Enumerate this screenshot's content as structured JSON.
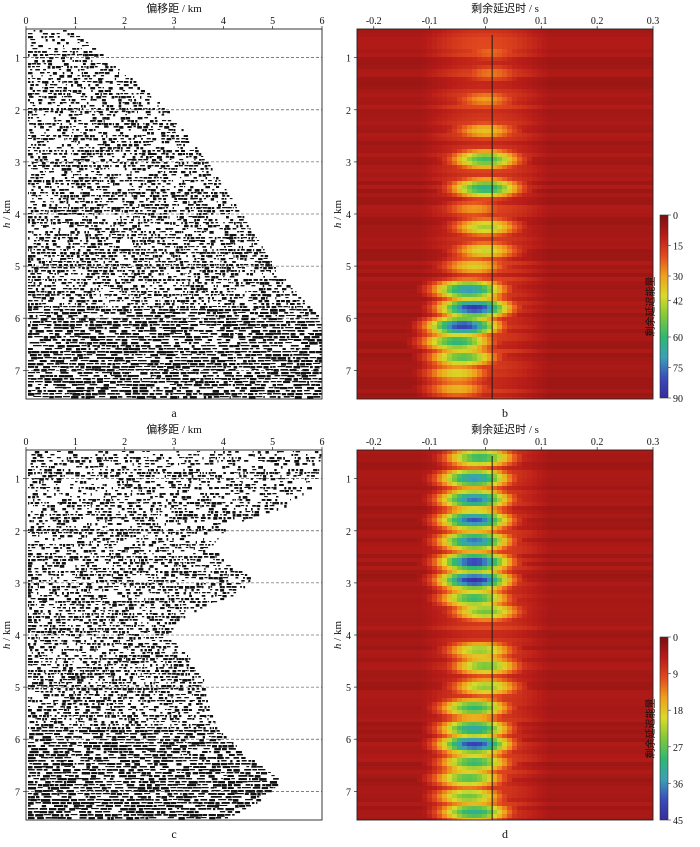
{
  "chart_data": [
    {
      "panel_letter": "a",
      "type": "heatmap",
      "style": "seismic-gather",
      "xlabel": "偏移距 / km",
      "ylabel_italic": "h",
      "ylabel_unit": " / km",
      "x_ticks": [
        0,
        1,
        2,
        3,
        4,
        5,
        6
      ],
      "y_ticks": [
        1,
        2,
        3,
        4,
        5,
        6,
        7
      ],
      "xlim": [
        0,
        6
      ],
      "ylim": [
        0.45,
        7.55
      ],
      "dashed_depths": [
        1,
        2,
        3,
        4,
        5,
        6,
        7
      ],
      "coverage_edge": [
        [
          0.45,
          0.9
        ],
        [
          1.0,
          1.7
        ],
        [
          2.0,
          2.9
        ],
        [
          3.0,
          3.7
        ],
        [
          4.0,
          4.4
        ],
        [
          5.0,
          5.05
        ],
        [
          5.5,
          5.5
        ],
        [
          6.0,
          6.0
        ],
        [
          7.55,
          6.0
        ]
      ]
    },
    {
      "panel_letter": "b",
      "type": "heatmap",
      "style": "energy",
      "xlabel": "剩余延迟时 / s",
      "ylabel_italic": "h",
      "ylabel_unit": " / km",
      "x_ticks": [
        -0.2,
        -0.1,
        0,
        0.1,
        0.2,
        0.3
      ],
      "y_ticks": [
        1,
        2,
        3,
        4,
        5,
        6,
        7
      ],
      "xlim": [
        -0.23,
        0.3
      ],
      "ylim": [
        0.45,
        7.55
      ],
      "colorbar_label": "剩余延迟能量",
      "colorbar_ticks": [
        0,
        15,
        30,
        42,
        60,
        75,
        90
      ],
      "colorbar_range": [
        0,
        90
      ],
      "colors": [
        "#7a1010",
        "#b81c18",
        "#e2491e",
        "#f0a01c",
        "#d9da2a",
        "#7ec83a",
        "#2fb872",
        "#3aa0b8",
        "#3a4cbc",
        "#362c9c"
      ],
      "energy_peaks": [
        {
          "depth": 0.9,
          "delay": 0.01,
          "energy": 24
        },
        {
          "depth": 1.3,
          "delay": 0.01,
          "energy": 26
        },
        {
          "depth": 1.8,
          "delay": 0.0,
          "energy": 30
        },
        {
          "depth": 2.4,
          "delay": 0.0,
          "energy": 36
        },
        {
          "depth": 2.95,
          "delay": 0.0,
          "energy": 58
        },
        {
          "depth": 3.5,
          "delay": 0.0,
          "energy": 64
        },
        {
          "depth": 3.9,
          "delay": -0.02,
          "energy": 30
        },
        {
          "depth": 4.25,
          "delay": 0.0,
          "energy": 46
        },
        {
          "depth": 4.7,
          "delay": 0.0,
          "energy": 42
        },
        {
          "depth": 5.0,
          "delay": -0.02,
          "energy": 38
        },
        {
          "depth": 5.45,
          "delay": -0.03,
          "energy": 72
        },
        {
          "depth": 5.8,
          "delay": -0.02,
          "energy": 86
        },
        {
          "depth": 6.15,
          "delay": -0.04,
          "energy": 84
        },
        {
          "depth": 6.45,
          "delay": -0.05,
          "energy": 62
        },
        {
          "depth": 6.75,
          "delay": -0.04,
          "energy": 56
        },
        {
          "depth": 7.05,
          "delay": -0.05,
          "energy": 40
        },
        {
          "depth": 7.35,
          "delay": -0.05,
          "energy": 34
        }
      ]
    },
    {
      "panel_letter": "c",
      "type": "heatmap",
      "style": "seismic-gather",
      "xlabel": "偏移距 / km",
      "ylabel_italic": "h",
      "ylabel_unit": " / km",
      "x_ticks": [
        0,
        1,
        2,
        3,
        4,
        5,
        6
      ],
      "y_ticks": [
        1,
        2,
        3,
        4,
        5,
        6,
        7
      ],
      "xlim": [
        0,
        6
      ],
      "ylim": [
        0.45,
        7.55
      ],
      "dashed_depths": [
        1,
        2,
        3,
        4,
        5,
        6,
        7
      ],
      "coverage_edge": [
        [
          0.45,
          6.0
        ],
        [
          1.1,
          5.9
        ],
        [
          1.5,
          5.3
        ],
        [
          1.9,
          4.1
        ],
        [
          2.3,
          3.8
        ],
        [
          2.6,
          4.1
        ],
        [
          2.9,
          4.6
        ],
        [
          3.2,
          4.3
        ],
        [
          3.45,
          3.6
        ],
        [
          3.7,
          3.1
        ],
        [
          4.0,
          2.9
        ],
        [
          4.4,
          3.3
        ],
        [
          4.8,
          3.6
        ],
        [
          5.3,
          3.7
        ],
        [
          5.8,
          3.9
        ],
        [
          6.3,
          4.5
        ],
        [
          6.8,
          5.2
        ],
        [
          7.2,
          4.7
        ],
        [
          7.55,
          4.0
        ]
      ]
    },
    {
      "panel_letter": "d",
      "type": "heatmap",
      "style": "energy",
      "xlabel": "剩余延迟时 / s",
      "ylabel_italic": "h",
      "ylabel_unit": " / km",
      "x_ticks": [
        -0.2,
        -0.1,
        0,
        0.1,
        0.2,
        0.3
      ],
      "y_ticks": [
        1,
        2,
        3,
        4,
        5,
        6,
        7
      ],
      "xlim": [
        -0.23,
        0.3
      ],
      "ylim": [
        0.45,
        7.55
      ],
      "colorbar_label": "剩余延迟能量",
      "colorbar_ticks": [
        0,
        9,
        18,
        27,
        36,
        45
      ],
      "colorbar_range": [
        0,
        45
      ],
      "colors": [
        "#7a1010",
        "#b81c18",
        "#e2491e",
        "#f0a01c",
        "#d9da2a",
        "#7ec83a",
        "#2fb872",
        "#3aa0b8",
        "#3a4cbc",
        "#362c9c"
      ],
      "energy_peaks": [
        {
          "depth": 0.6,
          "delay": -0.01,
          "energy": 30
        },
        {
          "depth": 1.0,
          "delay": -0.02,
          "energy": 36
        },
        {
          "depth": 1.4,
          "delay": -0.02,
          "energy": 38
        },
        {
          "depth": 1.8,
          "delay": -0.02,
          "energy": 40
        },
        {
          "depth": 2.2,
          "delay": -0.02,
          "energy": 38
        },
        {
          "depth": 2.6,
          "delay": -0.02,
          "energy": 42
        },
        {
          "depth": 2.95,
          "delay": -0.02,
          "energy": 44
        },
        {
          "depth": 3.3,
          "delay": -0.02,
          "energy": 30
        },
        {
          "depth": 3.55,
          "delay": 0.0,
          "energy": 26
        },
        {
          "depth": 4.3,
          "delay": -0.01,
          "energy": 24
        },
        {
          "depth": 4.6,
          "delay": 0.0,
          "energy": 26
        },
        {
          "depth": 5.0,
          "delay": 0.0,
          "energy": 24
        },
        {
          "depth": 5.4,
          "delay": -0.02,
          "energy": 30
        },
        {
          "depth": 5.8,
          "delay": -0.02,
          "energy": 34
        },
        {
          "depth": 6.1,
          "delay": -0.02,
          "energy": 42
        },
        {
          "depth": 6.45,
          "delay": -0.02,
          "energy": 30
        },
        {
          "depth": 6.75,
          "delay": -0.03,
          "energy": 28
        },
        {
          "depth": 7.1,
          "delay": -0.03,
          "energy": 26
        },
        {
          "depth": 7.4,
          "delay": -0.02,
          "energy": 32
        }
      ]
    }
  ]
}
